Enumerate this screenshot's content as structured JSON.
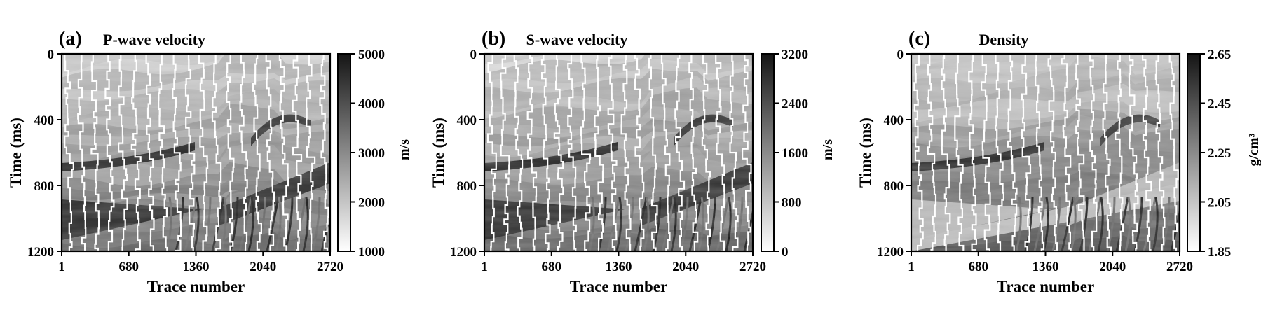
{
  "chart_data": [
    {
      "type": "heatmap",
      "panel_label": "(a)",
      "title": "P-wave velocity",
      "xlabel": "Trace number",
      "ylabel": "Time (ms)",
      "x_ticks": [
        "1",
        "680",
        "1360",
        "2040",
        "2720"
      ],
      "y_ticks": [
        "0",
        "400",
        "800",
        "1200"
      ],
      "xlim": [
        1,
        2720
      ],
      "ylim": [
        1200,
        0
      ],
      "colormap": "gray_r",
      "colorbar": {
        "label": "m/s",
        "ticks": [
          "1000",
          "2000",
          "3000",
          "4000",
          "5000"
        ],
        "range": [
          1000,
          5000
        ]
      },
      "overlay": "well-log traces (white)"
    },
    {
      "type": "heatmap",
      "panel_label": "(b)",
      "title": "S-wave velocity",
      "xlabel": "Trace number",
      "ylabel": "Time (ms)",
      "x_ticks": [
        "1",
        "680",
        "1360",
        "2040",
        "2720"
      ],
      "y_ticks": [
        "0",
        "400",
        "800",
        "1200"
      ],
      "xlim": [
        1,
        2720
      ],
      "ylim": [
        1200,
        0
      ],
      "colormap": "gray_r",
      "colorbar": {
        "label": "m/s",
        "ticks": [
          "0",
          "800",
          "1600",
          "2400",
          "3200"
        ],
        "range": [
          0,
          3200
        ]
      },
      "overlay": "well-log traces (white)"
    },
    {
      "type": "heatmap",
      "panel_label": "(c)",
      "title": "Density",
      "xlabel": "Trace number",
      "ylabel": "Time (ms)",
      "x_ticks": [
        "1",
        "680",
        "1360",
        "2040",
        "2720"
      ],
      "y_ticks": [
        "0",
        "400",
        "800",
        "1200"
      ],
      "xlim": [
        1,
        2720
      ],
      "ylim": [
        1200,
        0
      ],
      "colormap": "gray_r",
      "colorbar": {
        "label": "g/cm³",
        "ticks": [
          "1.85",
          "2.05",
          "2.25",
          "2.45",
          "2.65"
        ],
        "range": [
          1.85,
          2.65
        ]
      },
      "overlay": "well-log traces (white)"
    }
  ]
}
